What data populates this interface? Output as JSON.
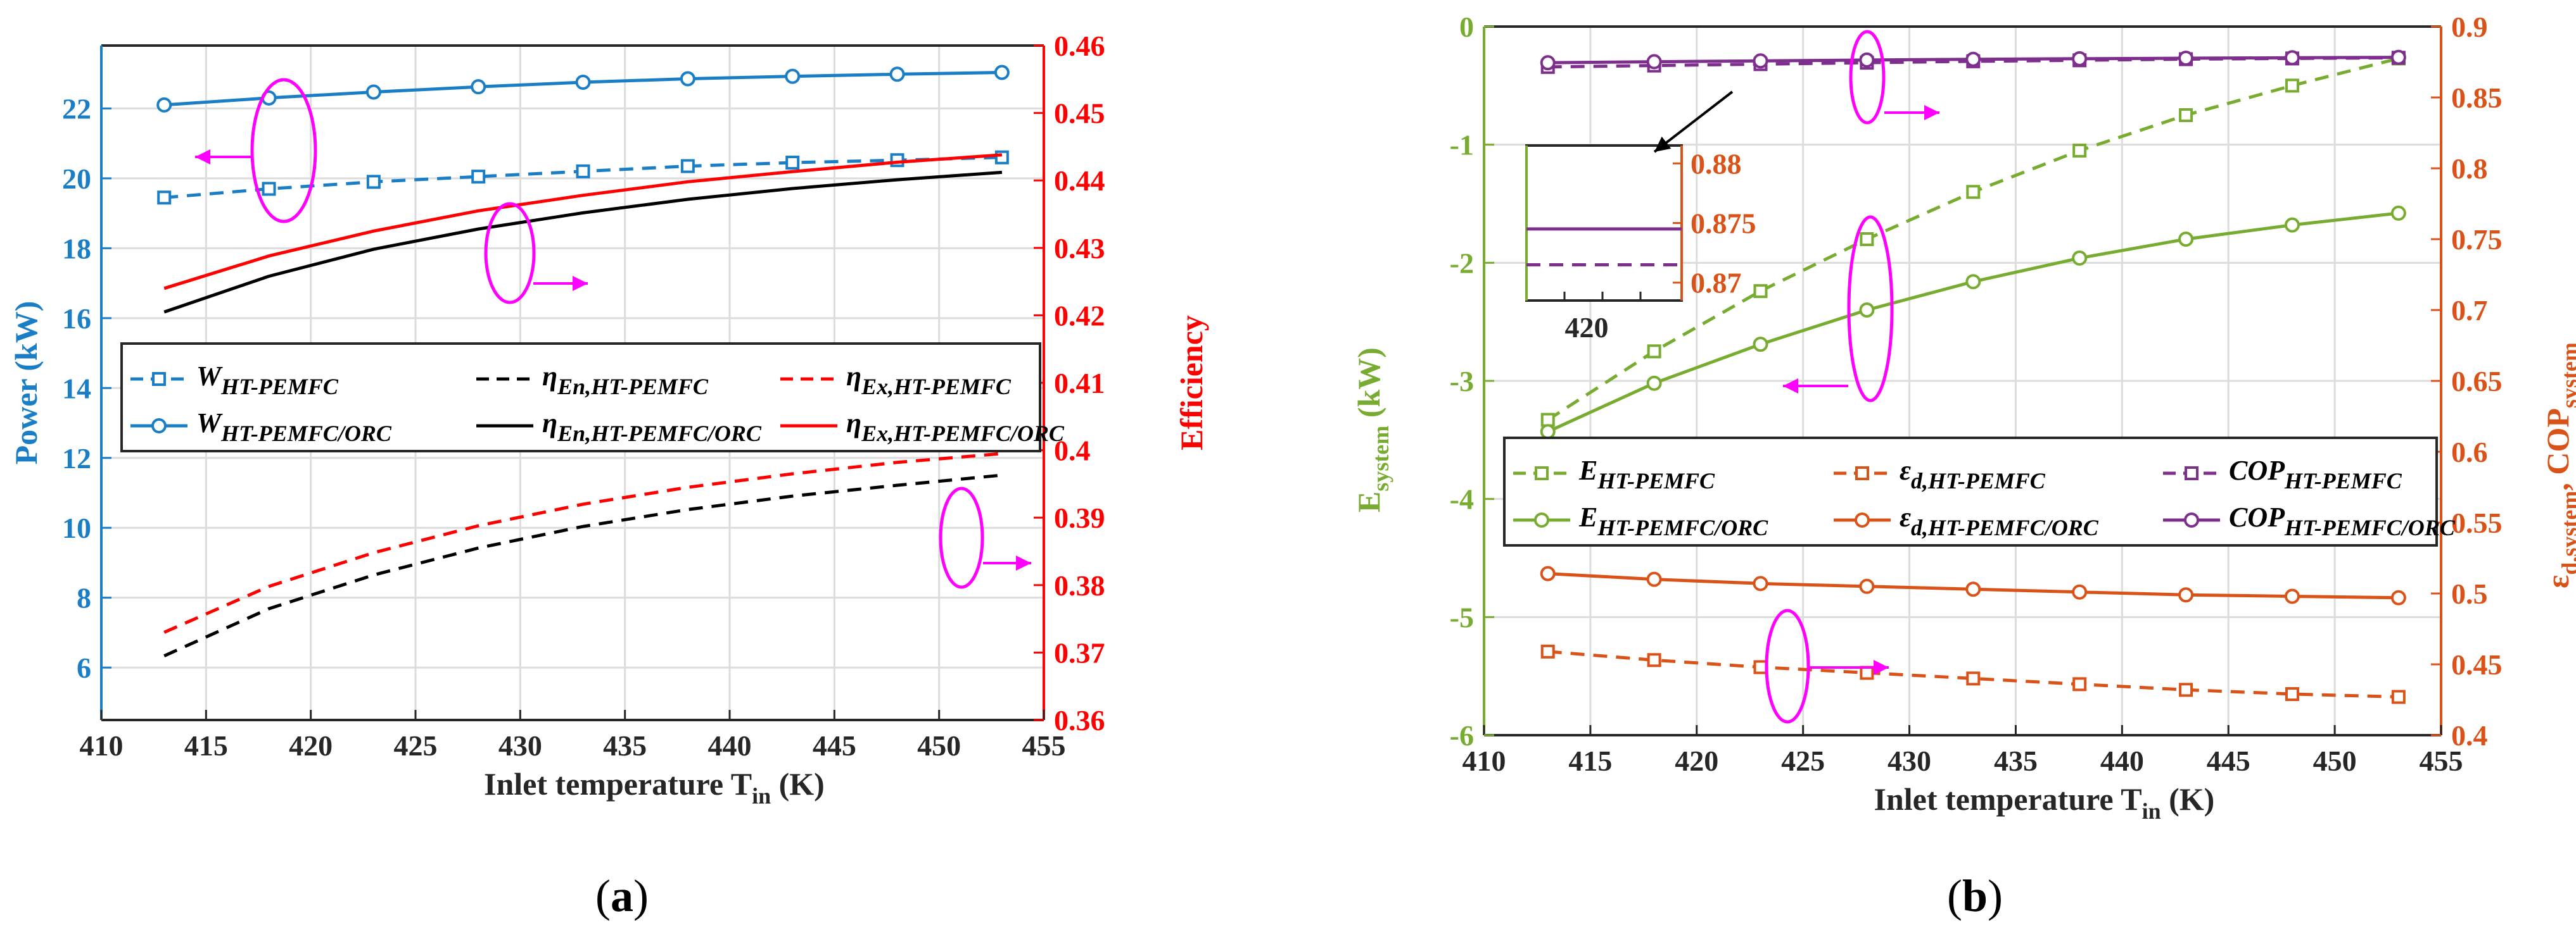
{
  "panel_labels": {
    "a": "a",
    "b": "b"
  },
  "chart_data": [
    {
      "type": "line",
      "panel": "a",
      "xlabel": "Inlet temperature T",
      "xlabel_sub": "in",
      "xlabel_unit": " (K)",
      "ylabel_left": "Power (kW)",
      "ylabel_right": "Efficiency",
      "xlim": [
        410,
        455
      ],
      "ylim_left": [
        4.5,
        23.8
      ],
      "ylim_right": [
        0.36,
        0.46
      ],
      "xticks": [
        "410",
        "415",
        "420",
        "425",
        "430",
        "435",
        "440",
        "445",
        "450",
        "455"
      ],
      "yticks_left": [
        "6",
        "8",
        "10",
        "12",
        "14",
        "16",
        "18",
        "20",
        "22"
      ],
      "yticks_right": [
        "0.36",
        "0.37",
        "0.38",
        "0.39",
        "0.4",
        "0.41",
        "0.42",
        "0.43",
        "0.44",
        "0.45",
        "0.46"
      ],
      "grid": true,
      "colors": {
        "left_axis": "#1a7ec6",
        "right_axis": "#ff0000",
        "annotation": "#ff00ff"
      },
      "series": [
        {
          "name": "W",
          "name_sub": "HT-PEMFC",
          "axis": "left",
          "color": "#1a7ec6",
          "dash": true,
          "marker": "square",
          "x": [
            413,
            418,
            423,
            428,
            433,
            438,
            443,
            448,
            453
          ],
          "y": [
            19.45,
            19.7,
            19.9,
            20.05,
            20.2,
            20.35,
            20.45,
            20.52,
            20.6
          ]
        },
        {
          "name": "W",
          "name_sub": "HT-PEMFC/ORC",
          "axis": "left",
          "color": "#1a7ec6",
          "dash": false,
          "marker": "circle",
          "x": [
            413,
            418,
            423,
            428,
            433,
            438,
            443,
            448,
            453
          ],
          "y": [
            22.1,
            22.3,
            22.47,
            22.62,
            22.75,
            22.85,
            22.92,
            22.98,
            23.03
          ]
        },
        {
          "name": "η",
          "name_sub": "En,HT-PEMFC",
          "axis": "right",
          "color": "#000000",
          "dash": true,
          "marker": "none",
          "x": [
            413,
            418,
            423,
            428,
            433,
            438,
            443,
            448,
            453
          ],
          "y": [
            0.3695,
            0.3765,
            0.3815,
            0.3855,
            0.3887,
            0.3912,
            0.3932,
            0.3948,
            0.3963
          ]
        },
        {
          "name": "η",
          "name_sub": "En,HT-PEMFC/ORC",
          "axis": "right",
          "color": "#000000",
          "dash": false,
          "marker": "none",
          "x": [
            413,
            418,
            423,
            428,
            433,
            438,
            443,
            448,
            453
          ],
          "y": [
            0.4205,
            0.4258,
            0.4298,
            0.4328,
            0.4352,
            0.4372,
            0.4388,
            0.4401,
            0.4412
          ]
        },
        {
          "name": "η",
          "name_sub": "Ex,HT-PEMFC",
          "axis": "right",
          "color": "#ff0000",
          "dash": true,
          "marker": "none",
          "x": [
            413,
            418,
            423,
            428,
            433,
            438,
            443,
            448,
            453
          ],
          "y": [
            0.373,
            0.3798,
            0.3848,
            0.3888,
            0.392,
            0.3945,
            0.3965,
            0.3982,
            0.3995
          ]
        },
        {
          "name": "η",
          "name_sub": "Ex,HT-PEMFC/ORC",
          "axis": "right",
          "color": "#ff0000",
          "dash": false,
          "marker": "none",
          "x": [
            413,
            418,
            423,
            428,
            433,
            438,
            443,
            448,
            453
          ],
          "y": [
            0.424,
            0.4288,
            0.4325,
            0.4355,
            0.4378,
            0.4398,
            0.4413,
            0.4427,
            0.4438
          ]
        }
      ]
    },
    {
      "type": "line",
      "panel": "b",
      "xlabel": "Inlet temperature T",
      "xlabel_sub": "in",
      "xlabel_unit": " (K)",
      "ylabel_left": "E",
      "ylabel_left_sub": "system",
      "ylabel_left_unit": " (kW)",
      "ylabel_right": "ε",
      "ylabel_right_sub1": "d,system",
      "ylabel_right_mid": ", COP",
      "ylabel_right_sub2": "system",
      "xlim": [
        410,
        455
      ],
      "ylim_left": [
        -6,
        0
      ],
      "ylim_right": [
        0.4,
        0.9
      ],
      "xticks": [
        "410",
        "415",
        "420",
        "425",
        "430",
        "435",
        "440",
        "445",
        "450",
        "455"
      ],
      "yticks_left": [
        "-6",
        "-5",
        "-4",
        "-3",
        "-2",
        "-1",
        "0"
      ],
      "yticks_right": [
        "0.4",
        "0.45",
        "0.5",
        "0.55",
        "0.6",
        "0.65",
        "0.7",
        "0.75",
        "0.8",
        "0.85",
        "0.9"
      ],
      "grid": true,
      "colors": {
        "left_axis": "#77ac30",
        "right_axis": "#d95319",
        "annotation": "#ff00ff"
      },
      "inset": {
        "xtick": "420",
        "yticks": [
          "0.88",
          "0.875",
          "0.87"
        ],
        "ylim": [
          0.8685,
          0.8815
        ]
      },
      "series": [
        {
          "name": "E",
          "name_sub": "HT-PEMFC",
          "axis": "left",
          "color": "#77ac30",
          "dash": true,
          "marker": "square",
          "x": [
            413,
            418,
            423,
            428,
            433,
            438,
            443,
            448,
            453
          ],
          "y": [
            -3.33,
            -2.75,
            -2.24,
            -1.8,
            -1.4,
            -1.05,
            -0.75,
            -0.5,
            -0.27
          ]
        },
        {
          "name": "E",
          "name_sub": "HT-PEMFC/ORC",
          "axis": "left",
          "color": "#77ac30",
          "dash": false,
          "marker": "circle",
          "x": [
            413,
            418,
            423,
            428,
            433,
            438,
            443,
            448,
            453
          ],
          "y": [
            -3.43,
            -3.02,
            -2.69,
            -2.4,
            -2.16,
            -1.96,
            -1.8,
            -1.68,
            -1.58
          ]
        },
        {
          "name": "ε",
          "name_sub": "d,HT-PEMFC",
          "axis": "right",
          "color": "#d95319",
          "dash": true,
          "marker": "square",
          "x": [
            413,
            418,
            423,
            428,
            433,
            438,
            443,
            448,
            453
          ],
          "y": [
            0.459,
            0.453,
            0.448,
            0.444,
            0.44,
            0.436,
            0.432,
            0.429,
            0.427
          ]
        },
        {
          "name": "ε",
          "name_sub": "d,HT-PEMFC/ORC",
          "axis": "right",
          "color": "#d95319",
          "dash": false,
          "marker": "circle",
          "x": [
            413,
            418,
            423,
            428,
            433,
            438,
            443,
            448,
            453
          ],
          "y": [
            0.514,
            0.51,
            0.507,
            0.505,
            0.503,
            0.501,
            0.499,
            0.498,
            0.497
          ]
        },
        {
          "name": "COP",
          "name_sub": "HT-PEMFC",
          "axis": "right",
          "color": "#7e2f8e",
          "dash": true,
          "marker": "square",
          "x": [
            413,
            418,
            423,
            428,
            433,
            438,
            443,
            448,
            453
          ],
          "y": [
            0.8715,
            0.8725,
            0.8735,
            0.8745,
            0.8755,
            0.8762,
            0.877,
            0.8775,
            0.878
          ]
        },
        {
          "name": "COP",
          "name_sub": "HT-PEMFC/ORC",
          "axis": "right",
          "color": "#7e2f8e",
          "dash": false,
          "marker": "circle",
          "x": [
            413,
            418,
            423,
            428,
            433,
            438,
            443,
            448,
            453
          ],
          "y": [
            0.8745,
            0.8752,
            0.8758,
            0.8764,
            0.8769,
            0.8773,
            0.8777,
            0.878,
            0.8783
          ]
        }
      ]
    }
  ]
}
